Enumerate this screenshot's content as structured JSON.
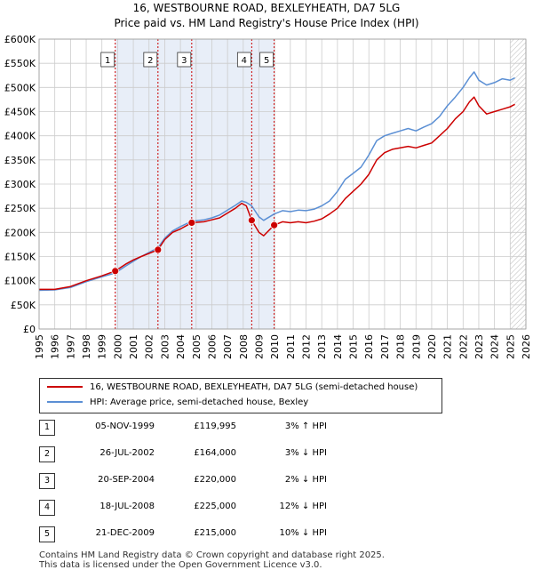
{
  "chart_data": {
    "type": "line",
    "title": "16, WESTBOURNE ROAD, BEXLEYHEATH, DA7 5LG",
    "subtitle": "Price paid vs. HM Land Registry's House Price Index (HPI)",
    "xlim": [
      1995,
      2026
    ],
    "ylim": [
      0,
      600000
    ],
    "x_ticks": [
      1995,
      1996,
      1997,
      1998,
      1999,
      2000,
      2001,
      2002,
      2003,
      2004,
      2005,
      2006,
      2007,
      2008,
      2009,
      2010,
      2011,
      2012,
      2013,
      2014,
      2015,
      2016,
      2017,
      2018,
      2019,
      2020,
      2021,
      2022,
      2023,
      2024,
      2025,
      2026
    ],
    "y_ticks": [
      {
        "value": 0,
        "label": "£0"
      },
      {
        "value": 50000,
        "label": "£50K"
      },
      {
        "value": 100000,
        "label": "£100K"
      },
      {
        "value": 150000,
        "label": "£150K"
      },
      {
        "value": 200000,
        "label": "£200K"
      },
      {
        "value": 250000,
        "label": "£250K"
      },
      {
        "value": 300000,
        "label": "£300K"
      },
      {
        "value": 350000,
        "label": "£350K"
      },
      {
        "value": 400000,
        "label": "£400K"
      },
      {
        "value": 450000,
        "label": "£450K"
      },
      {
        "value": 500000,
        "label": "£500K"
      },
      {
        "value": 550000,
        "label": "£550K"
      },
      {
        "value": 600000,
        "label": "£600K"
      }
    ],
    "shaded_bands": [
      [
        1999.85,
        2009.97
      ]
    ],
    "hatched_from": 2025.0,
    "series": [
      {
        "name": "16, WESTBOURNE ROAD, BEXLEYHEATH, DA7 5LG (semi-detached house)",
        "color": "#cc0000",
        "points": [
          [
            1995.0,
            82000
          ],
          [
            1996.0,
            82000
          ],
          [
            1997.0,
            88000
          ],
          [
            1998.0,
            100000
          ],
          [
            1999.0,
            110000
          ],
          [
            1999.85,
            119995
          ],
          [
            2000.5,
            134000
          ],
          [
            2001.0,
            143000
          ],
          [
            2001.5,
            150000
          ],
          [
            2002.57,
            164000
          ],
          [
            2003.0,
            185000
          ],
          [
            2003.5,
            200000
          ],
          [
            2004.0,
            207000
          ],
          [
            2004.72,
            220000
          ],
          [
            2005.5,
            222000
          ],
          [
            2006.0,
            226000
          ],
          [
            2006.5,
            230000
          ],
          [
            2007.0,
            240000
          ],
          [
            2007.5,
            250000
          ],
          [
            2007.9,
            260000
          ],
          [
            2008.2,
            255000
          ],
          [
            2008.54,
            225000
          ],
          [
            2009.0,
            200000
          ],
          [
            2009.3,
            193000
          ],
          [
            2009.97,
            215000
          ],
          [
            2010.5,
            222000
          ],
          [
            2011.0,
            220000
          ],
          [
            2011.5,
            222000
          ],
          [
            2012.0,
            220000
          ],
          [
            2012.5,
            223000
          ],
          [
            2013.0,
            228000
          ],
          [
            2013.5,
            238000
          ],
          [
            2014.0,
            250000
          ],
          [
            2014.5,
            270000
          ],
          [
            2015.0,
            285000
          ],
          [
            2015.5,
            300000
          ],
          [
            2016.0,
            320000
          ],
          [
            2016.5,
            350000
          ],
          [
            2017.0,
            365000
          ],
          [
            2017.5,
            372000
          ],
          [
            2018.0,
            375000
          ],
          [
            2018.5,
            378000
          ],
          [
            2019.0,
            375000
          ],
          [
            2019.5,
            380000
          ],
          [
            2020.0,
            385000
          ],
          [
            2020.5,
            400000
          ],
          [
            2021.0,
            415000
          ],
          [
            2021.5,
            435000
          ],
          [
            2022.0,
            450000
          ],
          [
            2022.4,
            470000
          ],
          [
            2022.7,
            480000
          ],
          [
            2023.0,
            462000
          ],
          [
            2023.5,
            445000
          ],
          [
            2024.0,
            450000
          ],
          [
            2024.5,
            455000
          ],
          [
            2025.0,
            460000
          ],
          [
            2025.3,
            465000
          ]
        ]
      },
      {
        "name": "HPI: Average price, semi-detached house, Bexley",
        "color": "#5b8fd4",
        "points": [
          [
            1995.0,
            80000
          ],
          [
            1996.0,
            81000
          ],
          [
            1997.0,
            86000
          ],
          [
            1998.0,
            98000
          ],
          [
            1999.0,
            108000
          ],
          [
            1999.85,
            116000
          ],
          [
            2000.5,
            130000
          ],
          [
            2001.0,
            140000
          ],
          [
            2001.5,
            150000
          ],
          [
            2002.57,
            168000
          ],
          [
            2003.0,
            188000
          ],
          [
            2003.5,
            203000
          ],
          [
            2004.0,
            212000
          ],
          [
            2004.72,
            223000
          ],
          [
            2005.5,
            226000
          ],
          [
            2006.0,
            230000
          ],
          [
            2006.5,
            236000
          ],
          [
            2007.0,
            246000
          ],
          [
            2007.5,
            256000
          ],
          [
            2007.9,
            265000
          ],
          [
            2008.2,
            262000
          ],
          [
            2008.54,
            255000
          ],
          [
            2009.0,
            232000
          ],
          [
            2009.3,
            225000
          ],
          [
            2009.97,
            238000
          ],
          [
            2010.5,
            245000
          ],
          [
            2011.0,
            243000
          ],
          [
            2011.5,
            246000
          ],
          [
            2012.0,
            245000
          ],
          [
            2012.5,
            248000
          ],
          [
            2013.0,
            255000
          ],
          [
            2013.5,
            265000
          ],
          [
            2014.0,
            285000
          ],
          [
            2014.5,
            310000
          ],
          [
            2015.0,
            322000
          ],
          [
            2015.5,
            335000
          ],
          [
            2016.0,
            360000
          ],
          [
            2016.5,
            390000
          ],
          [
            2017.0,
            400000
          ],
          [
            2017.5,
            405000
          ],
          [
            2018.0,
            410000
          ],
          [
            2018.5,
            415000
          ],
          [
            2019.0,
            410000
          ],
          [
            2019.5,
            418000
          ],
          [
            2020.0,
            425000
          ],
          [
            2020.5,
            440000
          ],
          [
            2021.0,
            462000
          ],
          [
            2021.5,
            480000
          ],
          [
            2022.0,
            500000
          ],
          [
            2022.4,
            520000
          ],
          [
            2022.7,
            532000
          ],
          [
            2023.0,
            515000
          ],
          [
            2023.5,
            505000
          ],
          [
            2024.0,
            510000
          ],
          [
            2024.5,
            518000
          ],
          [
            2025.0,
            515000
          ],
          [
            2025.3,
            520000
          ]
        ]
      }
    ],
    "sale_markers": [
      {
        "num": "1",
        "x": 1999.85,
        "y": 119995
      },
      {
        "num": "2",
        "x": 2002.57,
        "y": 164000
      },
      {
        "num": "3",
        "x": 2004.72,
        "y": 220000
      },
      {
        "num": "4",
        "x": 2008.54,
        "y": 225000
      },
      {
        "num": "5",
        "x": 2009.97,
        "y": 215000
      }
    ]
  },
  "legend": {
    "price_label": "16, WESTBOURNE ROAD, BEXLEYHEATH, DA7 5LG (semi-detached house)",
    "hpi_label": "HPI: Average price, semi-detached house, Bexley"
  },
  "sales": [
    {
      "num": "1",
      "date": "05-NOV-1999",
      "price": "£119,995",
      "hpi": "3% ↑ HPI"
    },
    {
      "num": "2",
      "date": "26-JUL-2002",
      "price": "£164,000",
      "hpi": "3% ↓ HPI"
    },
    {
      "num": "3",
      "date": "20-SEP-2004",
      "price": "£220,000",
      "hpi": "2% ↓ HPI"
    },
    {
      "num": "4",
      "date": "18-JUL-2008",
      "price": "£225,000",
      "hpi": "12% ↓ HPI"
    },
    {
      "num": "5",
      "date": "21-DEC-2009",
      "price": "£215,000",
      "hpi": "10% ↓ HPI"
    }
  ],
  "footer": {
    "line1": "Contains HM Land Registry data © Crown copyright and database right 2025.",
    "line2": "This data is licensed under the Open Government Licence v3.0."
  },
  "colors": {
    "price": "#cc0000",
    "hpi": "#5b8fd4",
    "band": "#e8eef8",
    "grid": "#cccccc"
  }
}
